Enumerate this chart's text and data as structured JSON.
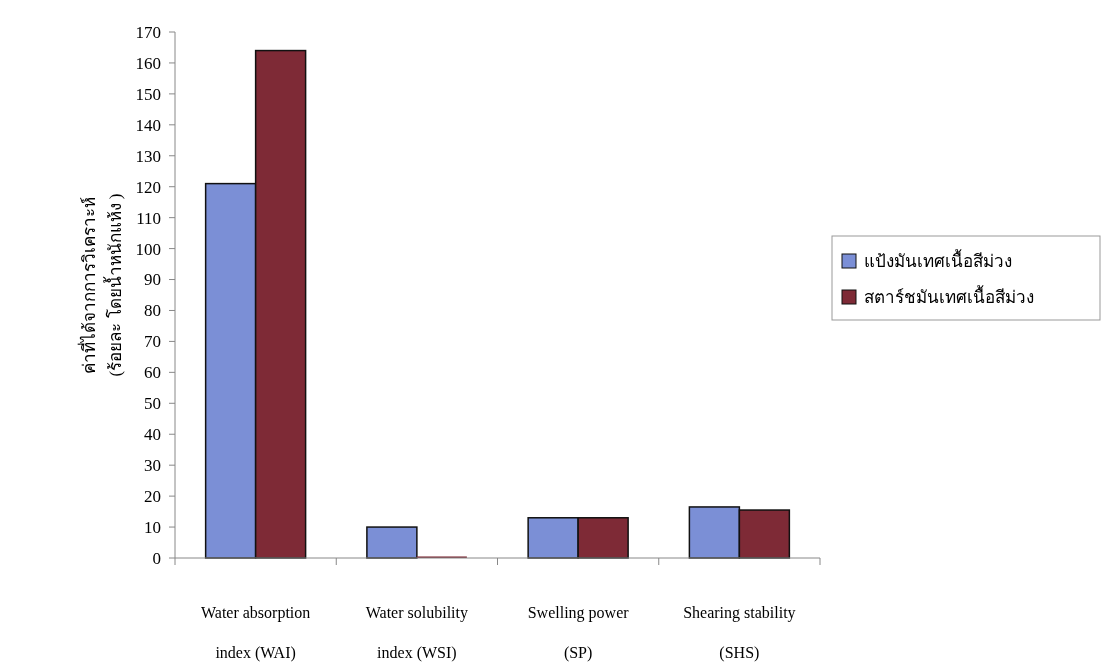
{
  "chart_data": {
    "type": "bar",
    "ylabel": "ค่าที่ได้จากการวิเคราะห์\n(ร้อยละ โดยน้ำหนักแห้ง )",
    "categories": [
      "Water absorption index (WAI)",
      "Water solubility index (WSI)",
      "Swelling power (SP)",
      "Shearing stability (SHS)"
    ],
    "series": [
      {
        "name": "แป้งมันเทศเนื้อสีม่วง",
        "color": "#7b8fd6",
        "values": [
          121,
          10,
          13,
          16.5
        ]
      },
      {
        "name": "สตาร์ชมันเทศเนื้อสีม่วง",
        "color": "#7e2a36",
        "values": [
          164,
          0.5,
          13,
          15.5
        ]
      }
    ],
    "ylim": [
      0,
      170
    ],
    "yticks": [
      0,
      10,
      20,
      30,
      40,
      50,
      60,
      70,
      80,
      90,
      100,
      110,
      120,
      130,
      140,
      150,
      160,
      170
    ],
    "legend": "right",
    "grid": false
  }
}
